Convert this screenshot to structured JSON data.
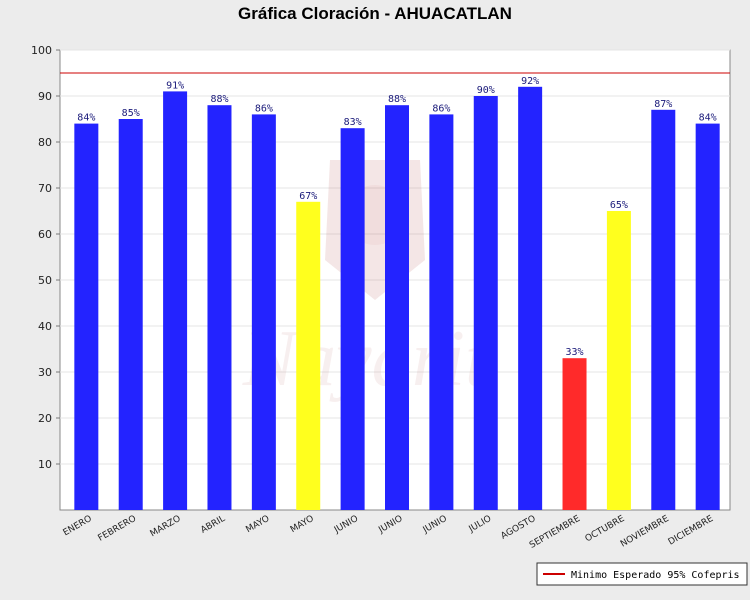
{
  "chart_data": {
    "type": "bar",
    "title": "Gráfica Cloración - AHUACATLAN",
    "categories": [
      "ENERO",
      "FEBRERO",
      "MARZO",
      "ABRIL",
      "MAYO",
      "MAYO",
      "JUNIO",
      "JUNIO",
      "JUNIO",
      "JULIO",
      "AGOSTO",
      "SEPTIEMBRE",
      "OCTUBRE",
      "NOVIEMBRE",
      "DICIEMBRE"
    ],
    "values": [
      84,
      85,
      91,
      88,
      86,
      67,
      83,
      88,
      86,
      90,
      92,
      33,
      65,
      87,
      84
    ],
    "data_labels": [
      "84%",
      "85%",
      "91%",
      "88%",
      "86%",
      "67%",
      "83%",
      "88%",
      "86%",
      "90%",
      "92%",
      "33%",
      "65%",
      "87%",
      "84%"
    ],
    "bar_colors": [
      "#2323ff",
      "#2323ff",
      "#2323ff",
      "#2323ff",
      "#2323ff",
      "#ffff1e",
      "#2323ff",
      "#2323ff",
      "#2323ff",
      "#2323ff",
      "#2323ff",
      "#ff2a2a",
      "#ffff1e",
      "#2323ff",
      "#2323ff"
    ],
    "ylim": [
      0,
      100
    ],
    "yticks": [
      10,
      20,
      30,
      40,
      50,
      60,
      70,
      80,
      90,
      100
    ],
    "xlabel": "",
    "ylabel": "",
    "grid": true,
    "reference_line": {
      "value": 95,
      "color": "#cc0000",
      "name": "Minimo Esperado 95% Cofepris"
    },
    "legend": {
      "position": "bottom-right"
    }
  }
}
